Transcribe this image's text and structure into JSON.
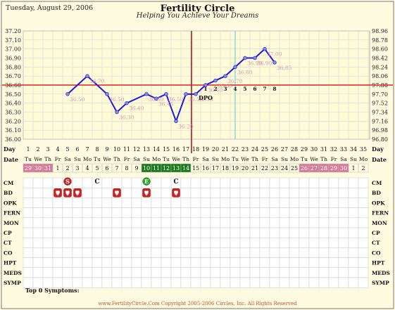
{
  "header": {
    "date": "Tuesday, August 29, 2006",
    "title": "Fertility Circle",
    "subtitle": "Helping You Achieve Your Dreams"
  },
  "chart_data": {
    "type": "line",
    "y_left_ticks": [
      "37.20",
      "37.10",
      "37.00",
      "36.90",
      "36.80",
      "36.70",
      "36.60",
      "36.50",
      "36.40",
      "36.30",
      "36.20",
      "36.10",
      "36.00"
    ],
    "y_right_ticks": [
      "98.96",
      "98.78",
      "98.60",
      "98.42",
      "98.24",
      "98.06",
      "97.88",
      "97.70",
      "97.52",
      "97.34",
      "97.16",
      "96.98",
      "96.80"
    ],
    "ylim": [
      36.0,
      37.2
    ],
    "cover_line": 36.6,
    "ovulation_day": 18,
    "today_day": 22,
    "dpo_label": "DPO",
    "dpo_days": [
      1,
      2,
      3,
      4,
      5,
      6,
      7,
      8
    ],
    "series": [
      {
        "values": [
          {
            "day": 5,
            "temp": 36.5,
            "label": "36.50"
          },
          {
            "day": 7,
            "temp": 36.7,
            "label": "36.70"
          },
          {
            "day": 9,
            "temp": 36.5,
            "label": "36.50"
          },
          {
            "day": 10,
            "temp": 36.3,
            "label": "36.30"
          },
          {
            "day": 11,
            "temp": 36.4,
            "label": "36.40"
          },
          {
            "day": 13,
            "temp": 36.5,
            "label": "36.50"
          },
          {
            "day": 14,
            "temp": 36.45,
            "label": "36.45"
          },
          {
            "day": 15,
            "temp": 36.5,
            "label": "36.50"
          },
          {
            "day": 16,
            "temp": 36.2,
            "label": "36.20"
          },
          {
            "day": 17,
            "temp": 36.5,
            "label": "36.50"
          },
          {
            "day": 18,
            "temp": 36.5,
            "label": "36.50"
          },
          {
            "day": 19,
            "temp": 36.6,
            "label": "36.60"
          },
          {
            "day": 20,
            "temp": 36.65,
            "label": "36.65"
          },
          {
            "day": 21,
            "temp": 36.7,
            "label": "36.70"
          },
          {
            "day": 22,
            "temp": 36.8,
            "label": "36.80"
          },
          {
            "day": 23,
            "temp": 36.9,
            "label": "36.90"
          },
          {
            "day": 24,
            "temp": 36.9,
            "label": "36.90"
          },
          {
            "day": 25,
            "temp": 37.0,
            "label": "37.00"
          },
          {
            "day": 26,
            "temp": 36.85,
            "label": "36.85"
          }
        ]
      }
    ]
  },
  "grid": {
    "days": [
      1,
      2,
      3,
      4,
      5,
      6,
      7,
      8,
      9,
      10,
      11,
      12,
      13,
      14,
      15,
      16,
      17,
      18,
      19,
      20,
      21,
      22,
      23,
      24,
      25,
      26,
      27,
      28,
      29,
      30,
      31,
      32,
      33,
      34,
      35
    ],
    "weekdays": [
      "Tu",
      "We",
      "Th",
      "Fr",
      "Sa",
      "Su",
      "Mo",
      "Tu",
      "We",
      "Th",
      "Fr",
      "Sa",
      "Su",
      "Mo",
      "Tu",
      "We",
      "Th",
      "Fr",
      "Sa",
      "Su",
      "Mo",
      "Tu",
      "We",
      "Th",
      "Fr",
      "Sa",
      "Su",
      "Mo",
      "Tu",
      "We",
      "Th",
      "Fr",
      "Sa",
      "Su",
      "Mo"
    ],
    "dates": [
      "29",
      "30",
      "31",
      "1",
      "2",
      "3",
      "4",
      "5",
      "6",
      "7",
      "8",
      "9",
      "10",
      "11",
      "12",
      "13",
      "14",
      "15",
      "16",
      "17",
      "18",
      "19",
      "20",
      "21",
      "22",
      "23",
      "24",
      "25",
      "26",
      "27",
      "28",
      "29",
      "30",
      "1",
      "2"
    ],
    "pink_days": [
      1,
      2,
      3,
      29,
      30,
      31,
      32,
      33
    ],
    "green_days": [
      13,
      14,
      15,
      16,
      17
    ],
    "row_labels": [
      "CM",
      "BD",
      "OPK",
      "FERN",
      "MON",
      "CP",
      "CT",
      "CO",
      "HPT",
      "MEDS",
      "SYMP"
    ],
    "label_day": "Day",
    "label_date": "Date",
    "cm_marks": [
      {
        "day": 5,
        "text": "S",
        "color": "#cc2222"
      },
      {
        "day": 8,
        "text": "C"
      },
      {
        "day": 13,
        "text": "E",
        "color": "#22aa22"
      },
      {
        "day": 16,
        "text": "C"
      }
    ],
    "bd_days": [
      4,
      5,
      6,
      10,
      13,
      16
    ]
  },
  "footer": {
    "top_symptoms": "Top 0 Symptoms:",
    "copyright": "www.FertilityCircle.Com Copyright 2005-2006 Circles, Inc. All Rights Reserved"
  },
  "colors": {
    "line": "#1a1ae0",
    "point": "#8a8ad8",
    "point_label": "#d49ab0",
    "coverline": "#e02020",
    "ovulation": "#b01830",
    "today": "#7fd8d8",
    "chart_bg": "#fffbd8",
    "pink": "#d67a9a",
    "green": "#1a7a1a",
    "grid": "#c8c8c8"
  }
}
